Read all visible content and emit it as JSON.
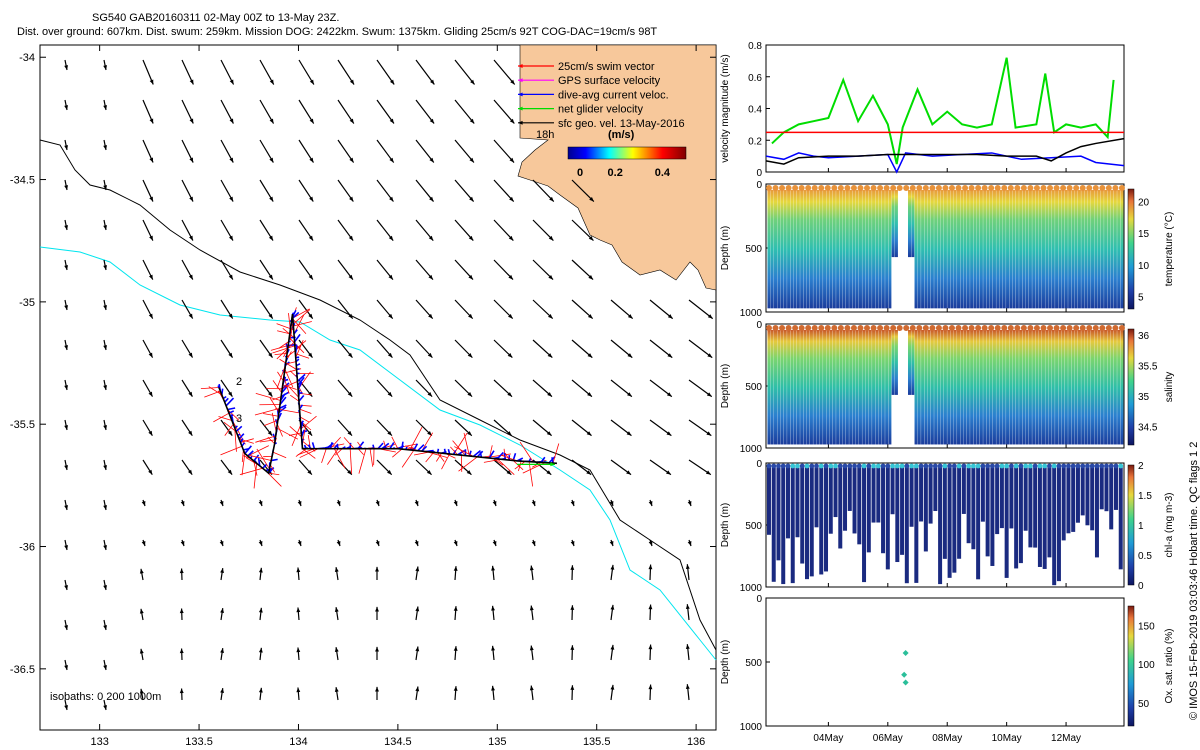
{
  "header": {
    "title_line1": "SG540 GAB20160311 02-May 00Z to 13-May 23Z.",
    "title_line2": "Dist. over ground: 607km. Dist. swum: 259km. Mission DOG: 2422km. Swum: 1375km. Gliding 25cm/s 92T COG-DAC=19cm/s 98T"
  },
  "credit": "© IMOS 15-Feb-2019 03:03:46 Hobart time. QC flags 1  2",
  "colors": {
    "land": "#f7c89b",
    "swim_vector": "#ff0000",
    "gps_surface": "#ff00ff",
    "dive_avg": "#0000ff",
    "net_velocity": "#00dd00",
    "sfc_geo": "#000000",
    "isobath_200": "#00e5ee",
    "isobath_1000": "#000000"
  },
  "chart_data": [
    {
      "type": "map",
      "id": "track-map",
      "xlim": [
        132.7,
        136.1
      ],
      "ylim": [
        -36.75,
        -33.95
      ],
      "xticks": [
        133,
        133.5,
        134,
        134.5,
        135,
        135.5,
        136
      ],
      "yticks": [
        -34,
        -34.5,
        -35,
        -35.5,
        -36,
        -36.5
      ],
      "xtick_labels": [
        "133",
        "133.5",
        "134",
        "134.5",
        "135",
        "135.5",
        "136"
      ],
      "ytick_labels": [
        "-34",
        "-34.5",
        "-35",
        "-35.5",
        "-36",
        "-36.5"
      ],
      "legend": [
        {
          "label": "25cm/s swim vector",
          "color": "#ff0000"
        },
        {
          "label": "GPS surface velocity",
          "color": "#ff00ff"
        },
        {
          "label": "dive-avg current veloc.",
          "color": "#0000ff"
        },
        {
          "label": "net glider velocity",
          "color": "#00dd00"
        },
        {
          "label": "sfc geo. vel. 13-May-2016",
          "color": "#000000"
        }
      ],
      "legend_note": "18h",
      "colorbar": {
        "label": "(m/s)",
        "ticks": [
          "0",
          "0.2",
          "0.4"
        ],
        "range": [
          0,
          0.5
        ]
      },
      "isobath_label": "isobaths: 0   200   1000m",
      "track_labels": [
        "2",
        "3"
      ],
      "glider_track": [
        [
          133.6,
          -35.35
        ],
        [
          133.73,
          -35.62
        ],
        [
          133.85,
          -35.7
        ],
        [
          133.88,
          -35.58
        ],
        [
          133.97,
          -35.05
        ],
        [
          134.02,
          -35.6
        ],
        [
          134.5,
          -35.6
        ],
        [
          135.1,
          -35.65
        ],
        [
          135.3,
          -35.66
        ]
      ]
    },
    {
      "type": "line",
      "id": "velocity-panel",
      "ylabel": "velocity magnitude (m/s)",
      "ylim": [
        0,
        0.8
      ],
      "yticks": [
        "0",
        "0.2",
        "0.4",
        "0.6",
        "0.8"
      ],
      "series": [
        {
          "name": "net glider velocity",
          "color": "#00dd00",
          "points": [
            [
              2.1,
              0.18
            ],
            [
              2.5,
              0.25
            ],
            [
              3.0,
              0.3
            ],
            [
              3.5,
              0.32
            ],
            [
              4.0,
              0.34
            ],
            [
              4.5,
              0.58
            ],
            [
              5.0,
              0.32
            ],
            [
              5.5,
              0.48
            ],
            [
              6.0,
              0.3
            ],
            [
              6.3,
              0.05
            ],
            [
              6.5,
              0.28
            ],
            [
              7.0,
              0.52
            ],
            [
              7.5,
              0.3
            ],
            [
              8.0,
              0.38
            ],
            [
              8.5,
              0.3
            ],
            [
              9.0,
              0.28
            ],
            [
              9.5,
              0.3
            ],
            [
              10.0,
              0.72
            ],
            [
              10.3,
              0.28
            ],
            [
              11.0,
              0.3
            ],
            [
              11.3,
              0.62
            ],
            [
              11.6,
              0.25
            ],
            [
              12.0,
              0.3
            ],
            [
              12.5,
              0.28
            ],
            [
              13.0,
              0.3
            ],
            [
              13.4,
              0.22
            ],
            [
              13.6,
              0.58
            ]
          ]
        },
        {
          "name": "swim speed",
          "color": "#ff0000",
          "points": [
            [
              1.9,
              0.25
            ],
            [
              13.95,
              0.25
            ]
          ]
        },
        {
          "name": "dive-avg current",
          "color": "#0000ff",
          "points": [
            [
              1.9,
              0.1
            ],
            [
              2.5,
              0.08
            ],
            [
              3.0,
              0.12
            ],
            [
              3.5,
              0.1
            ],
            [
              4.0,
              0.09
            ],
            [
              5.0,
              0.1
            ],
            [
              6.0,
              0.11
            ],
            [
              6.3,
              -0.02
            ],
            [
              6.6,
              0.12
            ],
            [
              7.5,
              0.1
            ],
            [
              8.5,
              0.11
            ],
            [
              9.5,
              0.12
            ],
            [
              10.5,
              0.08
            ],
            [
              11.5,
              0.09
            ],
            [
              12.5,
              0.1
            ],
            [
              13.0,
              0.06
            ],
            [
              13.95,
              0.04
            ]
          ]
        },
        {
          "name": "sfc geo. vel.",
          "color": "#000000",
          "points": [
            [
              1.9,
              0.07
            ],
            [
              2.5,
              0.05
            ],
            [
              3.0,
              0.09
            ],
            [
              4.0,
              0.1
            ],
            [
              5.0,
              0.1
            ],
            [
              6.0,
              0.11
            ],
            [
              7.0,
              0.11
            ],
            [
              8.0,
              0.11
            ],
            [
              9.0,
              0.11
            ],
            [
              10.0,
              0.1
            ],
            [
              11.0,
              0.1
            ],
            [
              11.5,
              0.07
            ],
            [
              12.0,
              0.12
            ],
            [
              12.5,
              0.16
            ],
            [
              13.0,
              0.18
            ],
            [
              13.95,
              0.21
            ]
          ]
        }
      ]
    },
    {
      "type": "heatmap",
      "id": "temperature-panel",
      "ylabel": "Depth (m)",
      "ylim": [
        1000,
        0
      ],
      "yticks": [
        "0",
        "500",
        "1000"
      ],
      "colorbar_label": "temperature (°C)",
      "colorbar_range": [
        3,
        22
      ],
      "colorbar_ticks": [
        "5",
        "10",
        "15",
        "20"
      ]
    },
    {
      "type": "heatmap",
      "id": "salinity-panel",
      "ylabel": "Depth (m)",
      "ylim": [
        1000,
        0
      ],
      "yticks": [
        "0",
        "500",
        "1000"
      ],
      "colorbar_label": "salinity",
      "colorbar_range": [
        34.2,
        36.1
      ],
      "colorbar_ticks": [
        "34.5",
        "35",
        "35.5",
        "36"
      ]
    },
    {
      "type": "heatmap",
      "id": "chla-panel",
      "ylabel": "Depth (m)",
      "ylim": [
        1000,
        0
      ],
      "yticks": [
        "0",
        "500",
        "1000"
      ],
      "colorbar_label": "chl-a (mg m-3)",
      "colorbar_range": [
        0,
        2
      ],
      "colorbar_ticks": [
        "0",
        "0.5",
        "1",
        "1.5",
        "2"
      ]
    },
    {
      "type": "scatter",
      "id": "oxygen-panel",
      "ylabel": "Depth (m)",
      "ylim": [
        1000,
        0
      ],
      "yticks": [
        "0",
        "500",
        "1000"
      ],
      "colorbar_label": "Ox. sat. ratio (%)",
      "colorbar_range": [
        20,
        175
      ],
      "colorbar_ticks": [
        "50",
        "100",
        "150"
      ],
      "points": [
        [
          6.6,
          430,
          70
        ],
        [
          6.55,
          600,
          70
        ],
        [
          6.6,
          660,
          70
        ]
      ],
      "xlim_days": [
        1.9,
        13.95
      ],
      "xticks": [
        4,
        6,
        8,
        10,
        12
      ],
      "xtick_labels": [
        "04May",
        "06May",
        "08May",
        "10May",
        "12May"
      ]
    }
  ]
}
